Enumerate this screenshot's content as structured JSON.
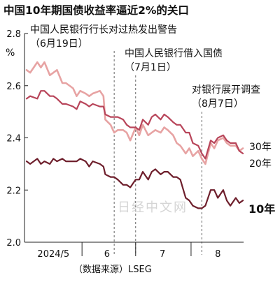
{
  "chart_data": {
    "type": "line",
    "title": "中国10年期国债收益率逼近2%的关口",
    "ylabel": "%",
    "ylim": [
      2.0,
      2.8
    ],
    "yticks": [
      "2.0",
      "2.2",
      "2.4",
      "2.6",
      "2.8"
    ],
    "xtick_labels": [
      "2024/5",
      "6",
      "7",
      "8"
    ],
    "grid": false,
    "source": "（数据来源）LSEG",
    "watermark": "日经中文网",
    "series_color_30y": "#e7a3a3",
    "series_color_20y": "#b8455a",
    "series_color_10y": "#6e1f2c",
    "annotations": [
      {
        "line1": "中国人民银行行长对过热发出警告",
        "line2": "（6月19日）",
        "date": "2024-06-19"
      },
      {
        "line1": "中国人民银行借入国债",
        "line2": "（7月1日）",
        "date": "2024-07-01"
      },
      {
        "line1": "对银行展开调查",
        "line2": "（8月7日）",
        "date": "2024-08-07"
      }
    ],
    "series": [
      {
        "name": "30年",
        "x": [
          "2024-05-01",
          "2024-05-03",
          "2024-05-07",
          "2024-05-09",
          "2024-05-11",
          "2024-05-14",
          "2024-05-16",
          "2024-05-18",
          "2024-05-21",
          "2024-05-23",
          "2024-05-27",
          "2024-05-29",
          "2024-05-31",
          "2024-06-03",
          "2024-06-05",
          "2024-06-07",
          "2024-06-11",
          "2024-06-13",
          "2024-06-14",
          "2024-06-17",
          "2024-06-19",
          "2024-06-21",
          "2024-06-24",
          "2024-06-26",
          "2024-06-28",
          "2024-07-01",
          "2024-07-03",
          "2024-07-05",
          "2024-07-08",
          "2024-07-10",
          "2024-07-12",
          "2024-07-15",
          "2024-07-17",
          "2024-07-19",
          "2024-07-22",
          "2024-07-24",
          "2024-07-26",
          "2024-07-29",
          "2024-07-31",
          "2024-08-02",
          "2024-08-05",
          "2024-08-07",
          "2024-08-09",
          "2024-08-12",
          "2024-08-14",
          "2024-08-16",
          "2024-08-19",
          "2024-08-21",
          "2024-08-23",
          "2024-08-26",
          "2024-08-28",
          "2024-08-30"
        ],
        "values": [
          2.66,
          2.65,
          2.69,
          2.67,
          2.69,
          2.64,
          2.65,
          2.66,
          2.61,
          2.61,
          2.59,
          2.56,
          2.58,
          2.57,
          2.56,
          2.57,
          2.58,
          2.56,
          2.47,
          2.45,
          2.42,
          2.43,
          2.43,
          2.42,
          2.39,
          2.44,
          2.41,
          2.45,
          2.41,
          2.42,
          2.43,
          2.42,
          2.44,
          2.43,
          2.41,
          2.38,
          2.37,
          2.34,
          2.36,
          2.33,
          2.35,
          2.32,
          2.3,
          2.38,
          2.36,
          2.39,
          2.4,
          2.38,
          2.37,
          2.37,
          2.35,
          2.36
        ]
      },
      {
        "name": "20年",
        "x": [
          "2024-05-01",
          "2024-05-03",
          "2024-05-07",
          "2024-05-09",
          "2024-05-11",
          "2024-05-14",
          "2024-05-16",
          "2024-05-18",
          "2024-05-21",
          "2024-05-23",
          "2024-05-27",
          "2024-05-29",
          "2024-05-31",
          "2024-06-03",
          "2024-06-05",
          "2024-06-07",
          "2024-06-11",
          "2024-06-13",
          "2024-06-14",
          "2024-06-17",
          "2024-06-19",
          "2024-06-21",
          "2024-06-24",
          "2024-06-26",
          "2024-06-28",
          "2024-07-01",
          "2024-07-03",
          "2024-07-05",
          "2024-07-08",
          "2024-07-10",
          "2024-07-12",
          "2024-07-15",
          "2024-07-17",
          "2024-07-19",
          "2024-07-22",
          "2024-07-24",
          "2024-07-26",
          "2024-07-29",
          "2024-07-31",
          "2024-08-02",
          "2024-08-05",
          "2024-08-07",
          "2024-08-09",
          "2024-08-12",
          "2024-08-14",
          "2024-08-16",
          "2024-08-19",
          "2024-08-21",
          "2024-08-23",
          "2024-08-26",
          "2024-08-28",
          "2024-08-30"
        ],
        "values": [
          2.55,
          2.56,
          2.55,
          2.58,
          2.58,
          2.56,
          2.56,
          2.55,
          2.53,
          2.53,
          2.52,
          2.51,
          2.54,
          2.53,
          2.52,
          2.53,
          2.52,
          2.52,
          2.49,
          2.48,
          2.48,
          2.48,
          2.47,
          2.45,
          2.44,
          2.44,
          2.43,
          2.47,
          2.45,
          2.48,
          2.49,
          2.47,
          2.49,
          2.48,
          2.46,
          2.45,
          2.45,
          2.42,
          2.42,
          2.38,
          2.37,
          2.34,
          2.32,
          2.39,
          2.38,
          2.4,
          2.41,
          2.39,
          2.38,
          2.38,
          2.35,
          2.34
        ]
      },
      {
        "name": "10年",
        "x": [
          "2024-05-01",
          "2024-05-03",
          "2024-05-07",
          "2024-05-09",
          "2024-05-11",
          "2024-05-14",
          "2024-05-16",
          "2024-05-18",
          "2024-05-21",
          "2024-05-23",
          "2024-05-27",
          "2024-05-29",
          "2024-05-31",
          "2024-06-03",
          "2024-06-05",
          "2024-06-07",
          "2024-06-11",
          "2024-06-13",
          "2024-06-14",
          "2024-06-17",
          "2024-06-19",
          "2024-06-21",
          "2024-06-24",
          "2024-06-26",
          "2024-06-28",
          "2024-07-01",
          "2024-07-03",
          "2024-07-05",
          "2024-07-08",
          "2024-07-10",
          "2024-07-12",
          "2024-07-15",
          "2024-07-17",
          "2024-07-19",
          "2024-07-22",
          "2024-07-24",
          "2024-07-26",
          "2024-07-29",
          "2024-07-31",
          "2024-08-02",
          "2024-08-05",
          "2024-08-07",
          "2024-08-09",
          "2024-08-12",
          "2024-08-14",
          "2024-08-16",
          "2024-08-19",
          "2024-08-21",
          "2024-08-23",
          "2024-08-26",
          "2024-08-28",
          "2024-08-30"
        ],
        "values": [
          2.31,
          2.3,
          2.32,
          2.3,
          2.31,
          2.3,
          2.32,
          2.31,
          2.32,
          2.31,
          2.31,
          2.31,
          2.32,
          2.31,
          2.29,
          2.31,
          2.3,
          2.29,
          2.26,
          2.25,
          2.25,
          2.24,
          2.22,
          2.22,
          2.21,
          2.24,
          2.24,
          2.27,
          2.24,
          2.27,
          2.28,
          2.26,
          2.27,
          2.27,
          2.25,
          2.25,
          2.24,
          2.17,
          2.16,
          2.14,
          2.13,
          2.13,
          2.14,
          2.2,
          2.2,
          2.17,
          2.2,
          2.16,
          2.14,
          2.17,
          2.15,
          2.16
        ]
      }
    ]
  }
}
